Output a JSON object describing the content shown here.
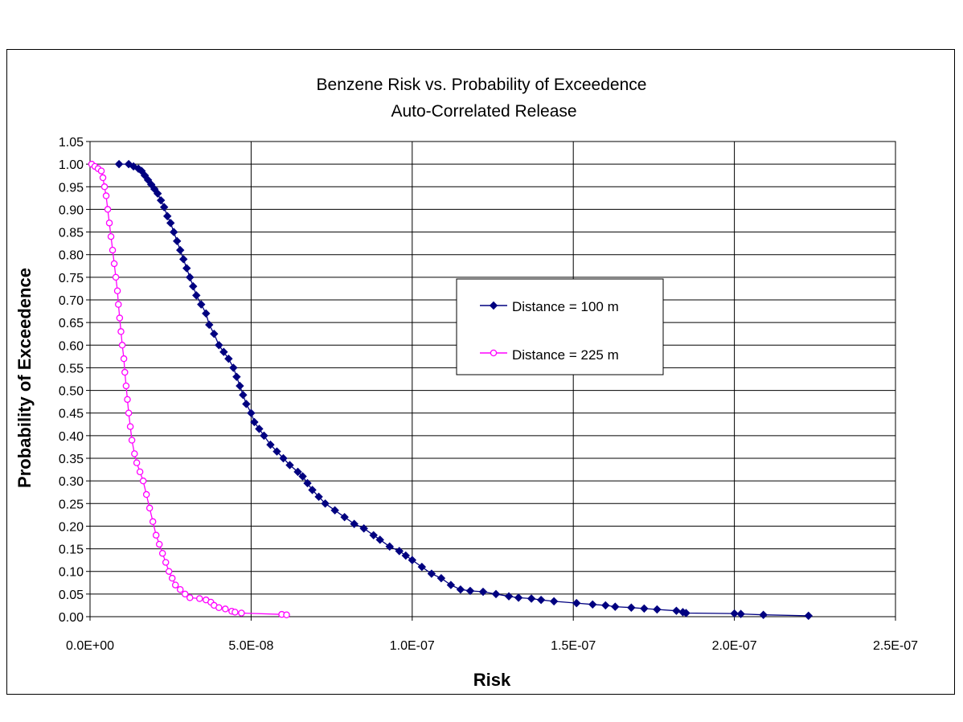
{
  "chart_data": {
    "type": "scatter",
    "title": "Benzene Risk vs. Probability of Exceedence",
    "subtitle": "Auto-Correlated Release",
    "xlabel": "Risk",
    "ylabel": "Probability of Exceedence",
    "xlim": [
      0,
      2.5e-07
    ],
    "ylim": [
      0,
      1.05
    ],
    "x_ticks": [
      "0.0E+00",
      "5.0E-08",
      "1.0E-07",
      "1.5E-07",
      "2.0E-07",
      "2.5E-07"
    ],
    "y_ticks": [
      "0.00",
      "0.05",
      "0.10",
      "0.15",
      "0.20",
      "0.25",
      "0.30",
      "0.35",
      "0.40",
      "0.45",
      "0.50",
      "0.55",
      "0.60",
      "0.65",
      "0.70",
      "0.75",
      "0.80",
      "0.85",
      "0.90",
      "0.95",
      "1.00",
      "1.05"
    ],
    "grid": true,
    "legend_position": "center-right",
    "series": [
      {
        "name": "Distance = 100 m",
        "color": "#000080",
        "marker": "diamond-filled",
        "points": [
          [
            9e-09,
            1.0
          ],
          [
            1.2e-08,
            1.0
          ],
          [
            1.35e-08,
            0.995
          ],
          [
            1.5e-08,
            0.99
          ],
          [
            1.6e-08,
            0.985
          ],
          [
            1.7e-08,
            0.975
          ],
          [
            1.8e-08,
            0.965
          ],
          [
            1.9e-08,
            0.955
          ],
          [
            2e-08,
            0.945
          ],
          [
            2.1e-08,
            0.935
          ],
          [
            2.2e-08,
            0.92
          ],
          [
            2.3e-08,
            0.905
          ],
          [
            2.4e-08,
            0.885
          ],
          [
            2.5e-08,
            0.87
          ],
          [
            2.6e-08,
            0.85
          ],
          [
            2.7e-08,
            0.83
          ],
          [
            2.8e-08,
            0.81
          ],
          [
            2.9e-08,
            0.79
          ],
          [
            3e-08,
            0.77
          ],
          [
            3.1e-08,
            0.75
          ],
          [
            3.2e-08,
            0.73
          ],
          [
            3.3e-08,
            0.71
          ],
          [
            3.45e-08,
            0.69
          ],
          [
            3.6e-08,
            0.67
          ],
          [
            3.7e-08,
            0.645
          ],
          [
            3.85e-08,
            0.625
          ],
          [
            4e-08,
            0.6
          ],
          [
            4.15e-08,
            0.585
          ],
          [
            4.3e-08,
            0.57
          ],
          [
            4.45e-08,
            0.55
          ],
          [
            4.55e-08,
            0.53
          ],
          [
            4.65e-08,
            0.51
          ],
          [
            4.75e-08,
            0.49
          ],
          [
            4.85e-08,
            0.47
          ],
          [
            5e-08,
            0.45
          ],
          [
            5.1e-08,
            0.43
          ],
          [
            5.25e-08,
            0.415
          ],
          [
            5.4e-08,
            0.4
          ],
          [
            5.6e-08,
            0.38
          ],
          [
            5.8e-08,
            0.365
          ],
          [
            6e-08,
            0.35
          ],
          [
            6.2e-08,
            0.335
          ],
          [
            6.45e-08,
            0.32
          ],
          [
            6.6e-08,
            0.31
          ],
          [
            6.75e-08,
            0.295
          ],
          [
            6.9e-08,
            0.28
          ],
          [
            7.1e-08,
            0.265
          ],
          [
            7.3e-08,
            0.25
          ],
          [
            7.6e-08,
            0.235
          ],
          [
            7.9e-08,
            0.22
          ],
          [
            8.2e-08,
            0.205
          ],
          [
            8.5e-08,
            0.195
          ],
          [
            8.8e-08,
            0.18
          ],
          [
            9e-08,
            0.17
          ],
          [
            9.3e-08,
            0.155
          ],
          [
            9.6e-08,
            0.145
          ],
          [
            9.8e-08,
            0.135
          ],
          [
            1e-07,
            0.125
          ],
          [
            1.03e-07,
            0.11
          ],
          [
            1.06e-07,
            0.095
          ],
          [
            1.09e-07,
            0.085
          ],
          [
            1.12e-07,
            0.07
          ],
          [
            1.15e-07,
            0.06
          ],
          [
            1.18e-07,
            0.057
          ],
          [
            1.22e-07,
            0.055
          ],
          [
            1.26e-07,
            0.05
          ],
          [
            1.3e-07,
            0.045
          ],
          [
            1.33e-07,
            0.042
          ],
          [
            1.37e-07,
            0.04
          ],
          [
            1.4e-07,
            0.037
          ],
          [
            1.44e-07,
            0.034
          ],
          [
            1.51e-07,
            0.03
          ],
          [
            1.56e-07,
            0.027
          ],
          [
            1.6e-07,
            0.025
          ],
          [
            1.63e-07,
            0.022
          ],
          [
            1.68e-07,
            0.02
          ],
          [
            1.72e-07,
            0.018
          ],
          [
            1.76e-07,
            0.016
          ],
          [
            1.82e-07,
            0.013
          ],
          [
            1.84e-07,
            0.01
          ],
          [
            1.85e-07,
            0.008
          ],
          [
            2e-07,
            0.007
          ],
          [
            2.02e-07,
            0.006
          ],
          [
            2.09e-07,
            0.004
          ],
          [
            2.23e-07,
            0.002
          ]
        ]
      },
      {
        "name": "Distance = 225 m",
        "color": "#ff00ff",
        "marker": "circle-open",
        "points": [
          [
            5e-10,
            1.0
          ],
          [
            1.5e-09,
            0.995
          ],
          [
            2.5e-09,
            0.99
          ],
          [
            3.5e-09,
            0.985
          ],
          [
            4e-09,
            0.97
          ],
          [
            4.5e-09,
            0.95
          ],
          [
            5e-09,
            0.93
          ],
          [
            5.5e-09,
            0.9
          ],
          [
            6e-09,
            0.87
          ],
          [
            6.5e-09,
            0.84
          ],
          [
            7e-09,
            0.81
          ],
          [
            7.5e-09,
            0.78
          ],
          [
            8e-09,
            0.75
          ],
          [
            8.5e-09,
            0.72
          ],
          [
            8.8e-09,
            0.69
          ],
          [
            9.2e-09,
            0.66
          ],
          [
            9.6e-09,
            0.63
          ],
          [
            1e-08,
            0.6
          ],
          [
            1.05e-08,
            0.57
          ],
          [
            1.08e-08,
            0.54
          ],
          [
            1.12e-08,
            0.51
          ],
          [
            1.16e-08,
            0.48
          ],
          [
            1.2e-08,
            0.45
          ],
          [
            1.25e-08,
            0.42
          ],
          [
            1.3e-08,
            0.39
          ],
          [
            1.38e-08,
            0.36
          ],
          [
            1.45e-08,
            0.34
          ],
          [
            1.55e-08,
            0.32
          ],
          [
            1.65e-08,
            0.3
          ],
          [
            1.75e-08,
            0.27
          ],
          [
            1.85e-08,
            0.24
          ],
          [
            1.95e-08,
            0.21
          ],
          [
            2.05e-08,
            0.18
          ],
          [
            2.15e-08,
            0.16
          ],
          [
            2.25e-08,
            0.14
          ],
          [
            2.35e-08,
            0.12
          ],
          [
            2.45e-08,
            0.1
          ],
          [
            2.55e-08,
            0.085
          ],
          [
            2.65e-08,
            0.07
          ],
          [
            2.8e-08,
            0.06
          ],
          [
            2.95e-08,
            0.05
          ],
          [
            3.1e-08,
            0.042
          ],
          [
            3.4e-08,
            0.04
          ],
          [
            3.6e-08,
            0.037
          ],
          [
            3.75e-08,
            0.032
          ],
          [
            3.85e-08,
            0.025
          ],
          [
            4e-08,
            0.02
          ],
          [
            4.2e-08,
            0.017
          ],
          [
            4.4e-08,
            0.012
          ],
          [
            4.5e-08,
            0.01
          ],
          [
            4.7e-08,
            0.008
          ],
          [
            5.95e-08,
            0.005
          ],
          [
            6.1e-08,
            0.004
          ]
        ]
      }
    ]
  }
}
